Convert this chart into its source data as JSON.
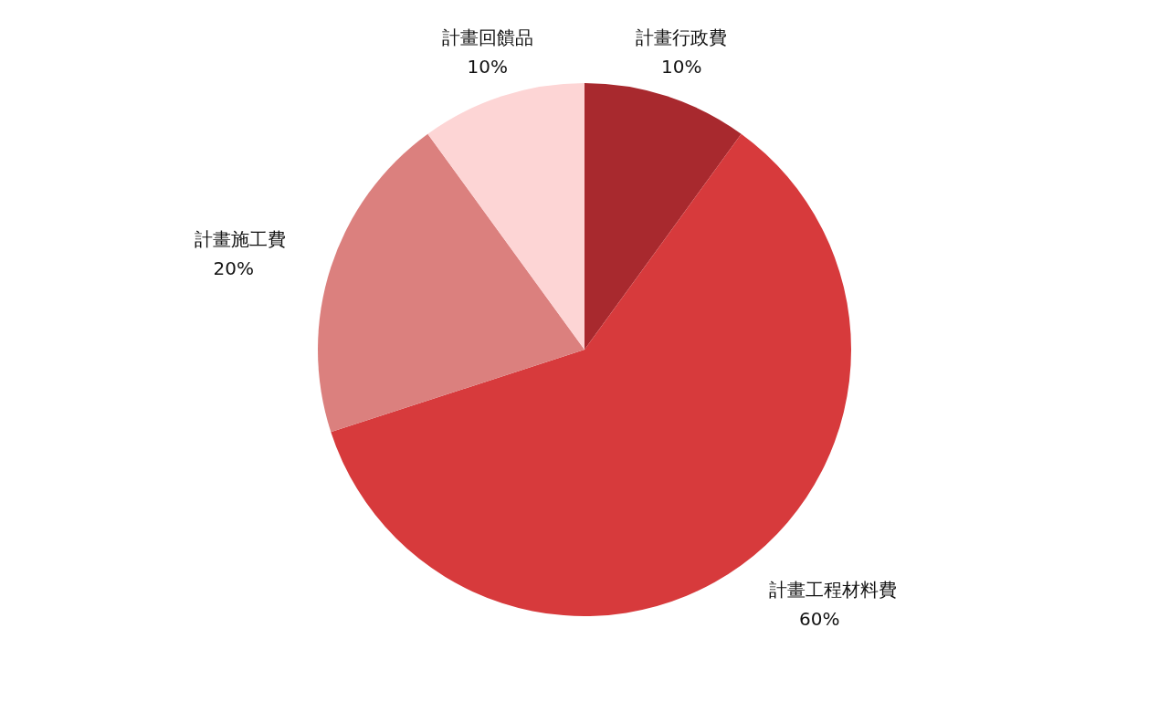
{
  "chart_data": {
    "type": "pie",
    "categories": [
      "計畫行政費",
      "計畫工程材料費",
      "計畫施工費",
      "計畫回饋品"
    ],
    "values": [
      10,
      60,
      20,
      10
    ],
    "colors": [
      "#a8292e",
      "#d73a3c",
      "#db807e",
      "#fdd5d5"
    ],
    "value_labels": [
      "10%",
      "60%",
      "20%",
      "10%"
    ]
  }
}
